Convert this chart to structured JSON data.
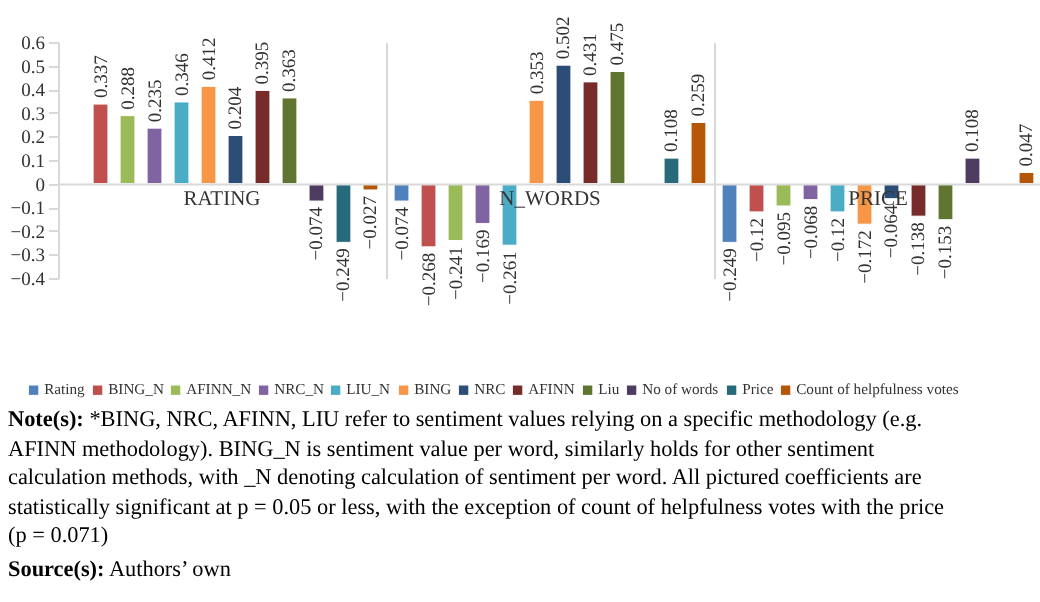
{
  "chart_data": {
    "type": "bar",
    "categories": [
      "RATING",
      "N_WORDS",
      "PRICE"
    ],
    "series": [
      {
        "name": "Rating",
        "color": "#4f81bd",
        "values": [
          null,
          -0.074,
          -0.249
        ],
        "value_labels": [
          null,
          "−0.074",
          "−0.249"
        ]
      },
      {
        "name": "BING_N",
        "color": "#c0504d",
        "values": [
          0.337,
          -0.268,
          -0.12
        ],
        "value_labels": [
          "0.337",
          "−0.268",
          "−0.12"
        ]
      },
      {
        "name": "AFINN_N",
        "color": "#9bbb59",
        "values": [
          0.288,
          -0.241,
          -0.095
        ],
        "value_labels": [
          "0.288",
          "−0.241",
          "−0.095"
        ]
      },
      {
        "name": "NRC_N",
        "color": "#8064a2",
        "values": [
          0.235,
          -0.169,
          -0.068
        ],
        "value_labels": [
          "0.235",
          "−0.169",
          "−0.068"
        ]
      },
      {
        "name": "LIU_N",
        "color": "#4bacc6",
        "values": [
          0.346,
          -0.261,
          -0.12
        ],
        "value_labels": [
          "0.346",
          "−0.261",
          "−0.12"
        ]
      },
      {
        "name": "BING",
        "color": "#f79646",
        "values": [
          0.412,
          0.353,
          -0.172
        ],
        "value_labels": [
          "0.412",
          "0.353",
          "−0.172"
        ]
      },
      {
        "name": "NRC",
        "color": "#2c4d75",
        "values": [
          0.204,
          0.502,
          -0.064
        ],
        "value_labels": [
          "0.204",
          "0.502",
          "−0.064"
        ]
      },
      {
        "name": "AFINN",
        "color": "#772c2a",
        "values": [
          0.395,
          0.431,
          -0.138
        ],
        "value_labels": [
          "0.395",
          "0.431",
          "−0.138"
        ]
      },
      {
        "name": "Liu",
        "color": "#5f7530",
        "values": [
          0.363,
          0.475,
          -0.153
        ],
        "value_labels": [
          "0.363",
          "0.475",
          "−0.153"
        ]
      },
      {
        "name": "No of words",
        "color": "#4d3b62",
        "values": [
          -0.074,
          null,
          0.108
        ],
        "value_labels": [
          "−0.074",
          null,
          "0.108"
        ]
      },
      {
        "name": "Price",
        "color": "#276a7c",
        "values": [
          -0.249,
          0.108,
          null
        ],
        "value_labels": [
          "−0.249",
          "0.108",
          null
        ]
      },
      {
        "name": "Count of helpfulness votes",
        "color": "#b65708",
        "values": [
          -0.027,
          0.259,
          0.047
        ],
        "value_labels": [
          "−0.027",
          "0.259",
          "0.047"
        ]
      }
    ],
    "ylim": [
      -0.4,
      0.6
    ],
    "yticks": [
      {
        "value": 0.6,
        "label": "0.6"
      },
      {
        "value": 0.5,
        "label": "0.5"
      },
      {
        "value": 0.4,
        "label": "0.4"
      },
      {
        "value": 0.3,
        "label": "0.3"
      },
      {
        "value": 0.2,
        "label": "0.2"
      },
      {
        "value": 0.1,
        "label": "0.1"
      },
      {
        "value": 0,
        "label": "0"
      },
      {
        "value": -0.1,
        "label": "−0.1"
      },
      {
        "value": -0.2,
        "label": "−0.2"
      },
      {
        "value": -0.3,
        "label": "−0.3"
      },
      {
        "value": -0.4,
        "label": "−0.4"
      }
    ],
    "legend": "bottom",
    "annotations": [
      "Note(s): *BING, NRC, AFINN, LIU refer to sentiment values relying on a specific methodology (e.g. AFINN methodology). BING_N is sentiment value per word, similarly holds for other sentiment calculation methods, with _N denoting calculation of sentiment per word. All pictured coefficients are statistically significant at p = 0.05 or less, with the exception of count of helpfulness votes with the price (p = 0.071)",
      "Source(s): Authors’ own"
    ]
  }
}
